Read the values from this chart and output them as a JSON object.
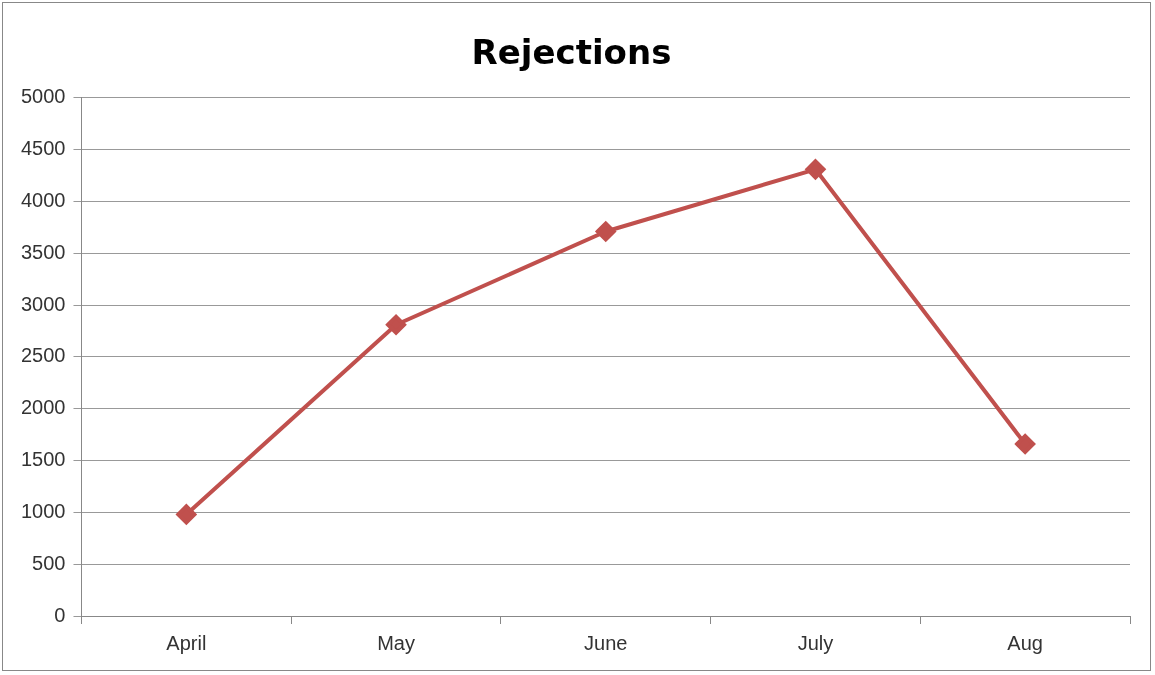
{
  "chart_data": {
    "type": "line",
    "title": "Rejections",
    "categories": [
      "April",
      "May",
      "June",
      "July",
      "Aug"
    ],
    "series": [
      {
        "color": "#c0504d",
        "values": [
          980,
          2810,
          3710,
          4310,
          1660
        ]
      }
    ],
    "ylim": [
      0,
      5000
    ],
    "yticks": [
      0,
      500,
      1000,
      1500,
      2000,
      2500,
      3000,
      3500,
      4000,
      4500,
      5000
    ],
    "grid": "y",
    "legend": false,
    "marker": "diamond",
    "line_style": "solid"
  }
}
